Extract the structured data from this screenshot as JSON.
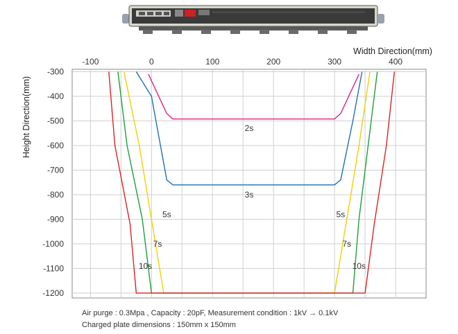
{
  "device_image": {
    "icon": "ionizer-bar-device",
    "body_color": "#d8d8d0",
    "display_color": "#cc2222"
  },
  "notes": {
    "line1": "Air purge : 0.3Mpa , Capacity : 20pF, Measurement condition : 1kV → 0.1kV",
    "line2": "Charged plate dimensions : 150mm x 150mm"
  },
  "chart_data": {
    "type": "line",
    "title": "",
    "xlabel": "Width Direction(mm)",
    "ylabel": "Height Direction(mm)",
    "xlim": [
      -130,
      450
    ],
    "ylim": [
      -1220,
      -290
    ],
    "x_ticks": [
      -100,
      0,
      100,
      200,
      300,
      400
    ],
    "y_ticks": [
      -300,
      -400,
      -500,
      -600,
      -700,
      -800,
      -900,
      -1000,
      -1100,
      -1200
    ],
    "x_tick_labels": [
      "-100",
      "0",
      "100",
      "200",
      "300",
      "400"
    ],
    "y_tick_labels": [
      "-300",
      "-400",
      "-500",
      "-600",
      "-700",
      "-800",
      "-900",
      "-1000",
      "-1100",
      "-1200"
    ],
    "x_axis_position": "top",
    "grid": true,
    "series": [
      {
        "name": "2s",
        "color": "#e0208a",
        "points": [
          [
            -5,
            -310
          ],
          [
            25,
            -470
          ],
          [
            35,
            -492
          ],
          [
            300,
            -492
          ],
          [
            310,
            -470
          ],
          [
            340,
            -310
          ]
        ]
      },
      {
        "name": "3s",
        "color": "#1f6fb5",
        "points": [
          [
            -25,
            -300
          ],
          [
            0,
            -400
          ],
          [
            25,
            -740
          ],
          [
            35,
            -760
          ],
          [
            300,
            -760
          ],
          [
            310,
            -740
          ],
          [
            330,
            -500
          ],
          [
            345,
            -300
          ]
        ]
      },
      {
        "name": "5s",
        "color": "#f0d000",
        "points": [
          [
            -45,
            -300
          ],
          [
            -20,
            -600
          ],
          [
            0,
            -900
          ],
          [
            20,
            -1200
          ],
          [
            300,
            -1200
          ],
          [
            320,
            -900
          ],
          [
            340,
            -600
          ],
          [
            358,
            -300
          ]
        ]
      },
      {
        "name": "7s",
        "color": "#1e9e3a",
        "points": [
          [
            -55,
            -300
          ],
          [
            -40,
            -600
          ],
          [
            -15,
            -900
          ],
          [
            0,
            -1200
          ],
          [
            330,
            -1200
          ],
          [
            340,
            -900
          ],
          [
            355,
            -600
          ],
          [
            370,
            -300
          ]
        ]
      },
      {
        "name": "10s",
        "color": "#dd2222",
        "points": [
          [
            -70,
            -300
          ],
          [
            -60,
            -600
          ],
          [
            -35,
            -920
          ],
          [
            -25,
            -1200
          ],
          [
            350,
            -1200
          ],
          [
            365,
            -920
          ],
          [
            385,
            -600
          ],
          [
            398,
            -300
          ]
        ]
      }
    ],
    "curve_labels": [
      {
        "text": "2s",
        "x": 160,
        "y": -530
      },
      {
        "text": "3s",
        "x": 160,
        "y": -800
      },
      {
        "text": "5s",
        "x": 25,
        "y": -880
      },
      {
        "text": "5s",
        "x": 310,
        "y": -880
      },
      {
        "text": "7s",
        "x": 10,
        "y": -1000
      },
      {
        "text": "7s",
        "x": 320,
        "y": -1000
      },
      {
        "text": "10s",
        "x": -10,
        "y": -1090
      },
      {
        "text": "10s",
        "x": 340,
        "y": -1090
      }
    ]
  }
}
